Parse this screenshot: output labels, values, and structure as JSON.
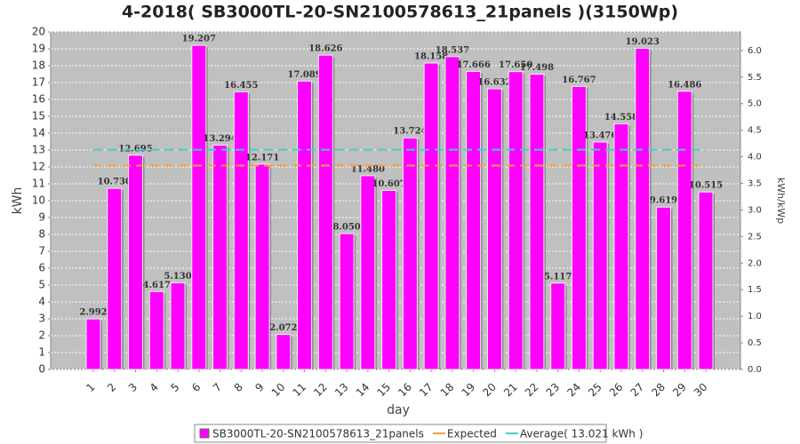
{
  "chart_data": {
    "type": "bar",
    "title": "4-2018( SB3000TL-20-SN2100578613_21panels )(3150Wp)",
    "x_label": "day",
    "y_label": "kWh",
    "y2_label": "kWh/kWp",
    "categories": [
      "1",
      "2",
      "3",
      "4",
      "5",
      "6",
      "7",
      "8",
      "9",
      "10",
      "11",
      "12",
      "13",
      "14",
      "15",
      "16",
      "17",
      "18",
      "19",
      "20",
      "21",
      "22",
      "23",
      "24",
      "25",
      "26",
      "27",
      "28",
      "29",
      "30"
    ],
    "series": [
      {
        "name": "SB3000TL-20-SN2100578613_21panels",
        "type": "bar",
        "color": "#ff00ff",
        "values": [
          2.992,
          10.73,
          12.695,
          4.617,
          5.13,
          19.207,
          13.294,
          16.455,
          12.171,
          2.072,
          17.089,
          18.626,
          8.05,
          11.48,
          10.607,
          13.724,
          18.158,
          18.537,
          17.666,
          16.632,
          17.65,
          17.498,
          5.117,
          16.767,
          13.476,
          14.558,
          19.023,
          9.619,
          16.486,
          10.515
        ],
        "value_labels": [
          "2.992",
          "10.730",
          "12.695",
          "4.617",
          "5.130",
          "19.207",
          "13.294",
          "16.455",
          "12.171",
          "2.072",
          "17.089",
          "18.626",
          "8.050",
          "11.480",
          "10.607",
          "13.724",
          "18.158",
          "18.537",
          "17.666",
          "16.632",
          "17.650",
          "17.498",
          "5.117",
          "16.767",
          "13.476",
          "14.558",
          "19.023",
          "9.619",
          "16.486",
          "10.515"
        ]
      },
      {
        "name": "Expected",
        "type": "line",
        "color": "#f0a040",
        "values": [
          12.08,
          12.08,
          12.08,
          12.08,
          12.08,
          12.08,
          12.08,
          12.08,
          12.08,
          12.08,
          12.08,
          12.08,
          12.08,
          12.08,
          12.08,
          12.08,
          12.08,
          12.08,
          12.08,
          12.08,
          12.08,
          12.08,
          12.08,
          12.08,
          12.08,
          12.08,
          12.08,
          12.08,
          12.08,
          12.08
        ]
      },
      {
        "name": "Average( 13.021 kWh )",
        "type": "line",
        "color": "#40d0d0",
        "values": [
          13.021,
          13.021,
          13.021,
          13.021,
          13.021,
          13.021,
          13.021,
          13.021,
          13.021,
          13.021,
          13.021,
          13.021,
          13.021,
          13.021,
          13.021,
          13.021,
          13.021,
          13.021,
          13.021,
          13.021,
          13.021,
          13.021,
          13.021,
          13.021,
          13.021,
          13.021,
          13.021,
          13.021,
          13.021,
          13.021
        ]
      }
    ],
    "ylim": [
      0,
      20
    ],
    "yticks": [
      0,
      1,
      2,
      3,
      4,
      5,
      6,
      7,
      8,
      9,
      10,
      11,
      12,
      13,
      14,
      15,
      16,
      17,
      18,
      19,
      20
    ],
    "y2lim": [
      0,
      6.349
    ],
    "y2ticks": [
      {
        "value": 0,
        "label": "0.0"
      },
      0.5,
      {
        "value": 1,
        "label": "1.0"
      },
      1.5,
      {
        "value": 2,
        "label": "2.0"
      },
      2.5,
      {
        "value": 3,
        "label": "3.0"
      },
      3.5,
      {
        "value": 4,
        "label": "4.0"
      },
      4.5,
      {
        "value": 5,
        "label": "5.0"
      },
      5.5,
      {
        "value": 6,
        "label": "6.0"
      }
    ],
    "grid": true,
    "legend": "bottom"
  }
}
